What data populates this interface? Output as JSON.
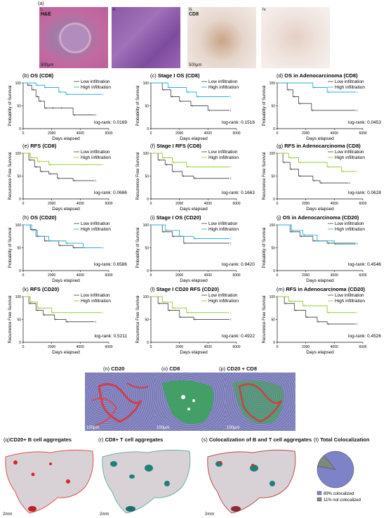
{
  "top_images": {
    "label": "(a)",
    "items": [
      {
        "roman": "i.",
        "stain": "H&E",
        "scale": "500μm"
      },
      {
        "roman": "ii.",
        "stain": "",
        "scale": ""
      },
      {
        "roman": "iii.",
        "stain": "CD8",
        "scale": "500μm"
      },
      {
        "roman": "iv.",
        "stain": "",
        "scale": ""
      }
    ]
  },
  "legend": {
    "low": "Low infiltration",
    "high": "High infiltration"
  },
  "x_axis_label": "Days elapsed",
  "colors": {
    "low": "#555555",
    "high_cyan": "#2ab0d8",
    "high_green": "#9ac93a"
  },
  "plots": [
    {
      "letter": "(b)",
      "title": "OS (CD8)",
      "ylabel": "Probability of Survival",
      "logrank": "log-rank: 0.0169",
      "high_color": "high_cyan",
      "low_steps": [
        [
          0,
          100
        ],
        [
          300,
          95
        ],
        [
          600,
          85
        ],
        [
          900,
          70
        ],
        [
          1100,
          60
        ],
        [
          1500,
          45
        ],
        [
          2000,
          45
        ],
        [
          2600,
          45
        ],
        [
          3500,
          30
        ],
        [
          5000,
          30
        ]
      ],
      "high_steps": [
        [
          0,
          100
        ],
        [
          900,
          95
        ],
        [
          1500,
          90
        ],
        [
          2500,
          80
        ],
        [
          3000,
          75
        ],
        [
          5500,
          75
        ]
      ]
    },
    {
      "letter": "(c)",
      "title": "Stage I OS (CD8)",
      "ylabel": "Probability of Survival",
      "logrank": "log-rank: 0.1516",
      "high_color": "high_cyan",
      "low_steps": [
        [
          0,
          100
        ],
        [
          800,
          85
        ],
        [
          1400,
          70
        ],
        [
          2000,
          60
        ],
        [
          2800,
          50
        ],
        [
          4000,
          40
        ],
        [
          5500,
          40
        ]
      ],
      "high_steps": [
        [
          0,
          100
        ],
        [
          1200,
          90
        ],
        [
          2500,
          80
        ],
        [
          3200,
          70
        ],
        [
          5500,
          70
        ]
      ]
    },
    {
      "letter": "(d)",
      "title": "OS in Adenocarcinoma (CD8)",
      "ylabel": "Probability of Survival",
      "logrank": "log-rank: 0.0453",
      "high_color": "high_cyan",
      "low_steps": [
        [
          0,
          100
        ],
        [
          700,
          85
        ],
        [
          1100,
          70
        ],
        [
          1500,
          55
        ],
        [
          2400,
          40
        ],
        [
          5500,
          40
        ]
      ],
      "high_steps": [
        [
          0,
          100
        ],
        [
          2500,
          90
        ],
        [
          3500,
          80
        ],
        [
          5500,
          80
        ]
      ]
    },
    {
      "letter": "(e)",
      "title": "RFS (CD8)",
      "ylabel": "Recurrence Free Survival",
      "logrank": "log-rank: 0.0686",
      "high_color": "high_green",
      "low_steps": [
        [
          0,
          100
        ],
        [
          400,
          85
        ],
        [
          800,
          70
        ],
        [
          1200,
          60
        ],
        [
          1800,
          55
        ],
        [
          2400,
          45
        ],
        [
          3500,
          40
        ],
        [
          5000,
          40
        ]
      ],
      "high_steps": [
        [
          0,
          100
        ],
        [
          500,
          90
        ],
        [
          1000,
          82
        ],
        [
          1800,
          75
        ],
        [
          5500,
          75
        ]
      ]
    },
    {
      "letter": "(f)",
      "title": "Stage I RFS (CD8)",
      "ylabel": "Recurrence Free Survival",
      "logrank": "log-rank: 0.1663",
      "high_color": "high_green",
      "low_steps": [
        [
          0,
          100
        ],
        [
          500,
          85
        ],
        [
          1000,
          75
        ],
        [
          1500,
          60
        ],
        [
          2200,
          50
        ],
        [
          3000,
          45
        ],
        [
          5500,
          45
        ]
      ],
      "high_steps": [
        [
          0,
          100
        ],
        [
          800,
          90
        ],
        [
          1500,
          80
        ],
        [
          2500,
          70
        ],
        [
          5500,
          70
        ]
      ]
    },
    {
      "letter": "(g)",
      "title": "RFS in Adenocarcinoma (CD8)",
      "ylabel": "Recurrence Free Survival",
      "logrank": "log-rank: 0.0628",
      "high_color": "high_green",
      "low_steps": [
        [
          0,
          100
        ],
        [
          400,
          80
        ],
        [
          900,
          65
        ],
        [
          1500,
          50
        ],
        [
          2500,
          40
        ],
        [
          3000,
          35
        ],
        [
          5000,
          35
        ]
      ],
      "high_steps": [
        [
          0,
          100
        ],
        [
          800,
          90
        ],
        [
          1500,
          80
        ],
        [
          3500,
          70
        ],
        [
          4500,
          60
        ],
        [
          5500,
          60
        ]
      ]
    },
    {
      "letter": "(h)",
      "title": "OS (CD20)",
      "ylabel": "Probability of Survival",
      "logrank": "log-rank: 0.6586",
      "high_color": "high_cyan",
      "low_steps": [
        [
          0,
          100
        ],
        [
          500,
          90
        ],
        [
          900,
          75
        ],
        [
          1500,
          65
        ],
        [
          2500,
          55
        ],
        [
          3500,
          50
        ],
        [
          5500,
          50
        ]
      ],
      "high_steps": [
        [
          0,
          100
        ],
        [
          600,
          88
        ],
        [
          1000,
          75
        ],
        [
          1800,
          65
        ],
        [
          3000,
          60
        ],
        [
          4200,
          50
        ],
        [
          5500,
          50
        ]
      ]
    },
    {
      "letter": "(i)",
      "title": "Stage I OS (CD20)",
      "ylabel": "Probability of Survival",
      "logrank": "log-rank: 0.9420",
      "high_color": "high_cyan",
      "low_steps": [
        [
          0,
          100
        ],
        [
          800,
          85
        ],
        [
          1500,
          75
        ],
        [
          2300,
          60
        ],
        [
          5500,
          60
        ]
      ],
      "high_steps": [
        [
          0,
          100
        ],
        [
          1000,
          88
        ],
        [
          2000,
          75
        ],
        [
          3000,
          70
        ],
        [
          5500,
          70
        ]
      ]
    },
    {
      "letter": "(j)",
      "title": "OS in Adenocarcinoma (CD20)",
      "ylabel": "Probability of Survival",
      "logrank": "log-rank: 0.4546",
      "high_color": "high_cyan",
      "low_steps": [
        [
          0,
          100
        ],
        [
          900,
          85
        ],
        [
          1600,
          75
        ],
        [
          2500,
          65
        ],
        [
          3500,
          60
        ],
        [
          5500,
          60
        ]
      ],
      "high_steps": [
        [
          0,
          100
        ],
        [
          1000,
          88
        ],
        [
          1800,
          78
        ],
        [
          2800,
          65
        ],
        [
          4000,
          58
        ],
        [
          5500,
          58
        ]
      ]
    },
    {
      "letter": "(k)",
      "title": "RFS (CD20)",
      "ylabel": "Recurrence Free Survival",
      "logrank": "log-rank: 0.5211",
      "high_color": "high_green",
      "low_steps": [
        [
          0,
          100
        ],
        [
          400,
          85
        ],
        [
          900,
          70
        ],
        [
          1400,
          60
        ],
        [
          2200,
          50
        ],
        [
          3000,
          45
        ],
        [
          5000,
          45
        ]
      ],
      "high_steps": [
        [
          0,
          100
        ],
        [
          500,
          88
        ],
        [
          1000,
          75
        ],
        [
          2000,
          65
        ],
        [
          5500,
          65
        ]
      ]
    },
    {
      "letter": "(l)",
      "title": "Stage I CD20 RFS (CD20)",
      "ylabel": "Recurrence Free Survival",
      "logrank": "log-rank: 0.4922",
      "high_color": "high_green",
      "low_steps": [
        [
          0,
          100
        ],
        [
          500,
          85
        ],
        [
          1200,
          70
        ],
        [
          2000,
          55
        ],
        [
          3000,
          50
        ],
        [
          5500,
          50
        ]
      ],
      "high_steps": [
        [
          0,
          100
        ],
        [
          800,
          88
        ],
        [
          1500,
          75
        ],
        [
          2500,
          65
        ],
        [
          5500,
          65
        ]
      ]
    },
    {
      "letter": "(m)",
      "title": "RFS in Adenocarcinoma (CD20)",
      "ylabel": "Recurrence Free Survival",
      "logrank": "log-rank: 0.4526",
      "high_color": "high_green",
      "low_steps": [
        [
          0,
          100
        ],
        [
          500,
          85
        ],
        [
          1200,
          70
        ],
        [
          2000,
          55
        ],
        [
          2800,
          45
        ],
        [
          3500,
          40
        ],
        [
          5500,
          40
        ]
      ],
      "high_steps": [
        [
          0,
          100
        ],
        [
          800,
          90
        ],
        [
          1800,
          80
        ],
        [
          3500,
          65
        ],
        [
          5500,
          65
        ]
      ]
    }
  ],
  "mid_images": [
    {
      "letter": "(n)",
      "title": "CD20",
      "scale": "100μm"
    },
    {
      "letter": "(o)",
      "title": "CD8",
      "scale": "100μm"
    },
    {
      "letter": "(p)",
      "title": "CD20 + CD8",
      "scale": "100μm"
    }
  ],
  "bottom_images": [
    {
      "letter": "(q)",
      "title": "CD20+ B cell aggregates",
      "scale": "2mm"
    },
    {
      "letter": "(r)",
      "title": "CD8+ T cell aggregates",
      "scale": "2mm"
    },
    {
      "letter": "(s)",
      "title": "Colocalization of B and T cell aggregates",
      "scale": "2mm"
    }
  ],
  "chart_data": {
    "type": "pie",
    "letter": "(t)",
    "title": "Total Colocalization",
    "slices": [
      {
        "label": "89% colocalized",
        "value": 89,
        "color": "#7e82c6"
      },
      {
        "label": "11% not colocalized",
        "value": 11,
        "color": "#7a8a7e"
      }
    ]
  }
}
